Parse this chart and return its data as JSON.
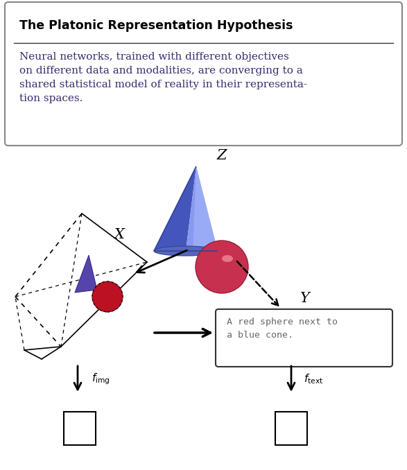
{
  "title": "The Platonic Representation Hypothesis",
  "body_text": "Neural networks, trained with different objectives\non different data and modalities, are converging to a\nshared statistical model of reality in their representa-\ntion spaces.",
  "title_color": "#000000",
  "body_color": "#3a2a6e",
  "box_bg": "#ffffff",
  "box_edge": "#888888",
  "label_Z": "Z",
  "label_X": "X",
  "label_Y": "Y",
  "label_fimg": "$f_{\\mathrm{img}}$",
  "label_ftext": "$f_{\\mathrm{text}}$",
  "text_box_text": "A red sphere next to\na blue cone.",
  "cone_dark": "#4455bb",
  "cone_mid": "#6677cc",
  "cone_light": "#8899ee",
  "sphere_dark": "#aa2233",
  "sphere_mid": "#cc3344",
  "sphere_light": "#dd8899",
  "mini_cone_color": "#5544aa",
  "mini_sphere_color": "#aa1122"
}
